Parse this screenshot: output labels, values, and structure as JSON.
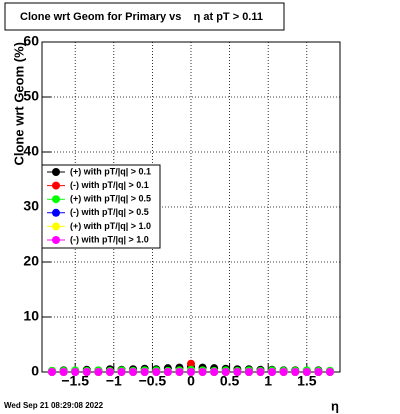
{
  "chart_data": {
    "type": "scatter",
    "title": "Clone wrt Geom for Primary vs    η at pT > 0.11",
    "y_label": "Clone wrt Geom (%)",
    "x_label": "η",
    "timestamp": "Wed Sep 21 08:29:08 2022",
    "x": [
      -1.8,
      -1.65,
      -1.5,
      -1.35,
      -1.2,
      -1.05,
      -0.9,
      -0.75,
      -0.6,
      -0.45,
      -0.3,
      -0.15,
      0,
      0.15,
      0.3,
      0.45,
      0.6,
      0.75,
      0.9,
      1.05,
      1.2,
      1.35,
      1.5,
      1.65,
      1.8
    ],
    "series": [
      {
        "name": "(+) with pT/|q| > 0.1",
        "color": "#000000",
        "values": [
          0.2,
          0.3,
          0.2,
          0.4,
          0.3,
          0.5,
          0.4,
          0.5,
          0.6,
          0.5,
          0.7,
          0.8,
          1.0,
          0.8,
          0.7,
          0.6,
          0.5,
          0.5,
          0.4,
          0.4,
          0.3,
          0.3,
          0.2,
          0.3,
          0.2
        ]
      },
      {
        "name": "(-) with pT/|q| > 0.1",
        "color": "#ff0000",
        "values": [
          0,
          0,
          0,
          0,
          0,
          0,
          0,
          0,
          0,
          0,
          0,
          0.3,
          1.5,
          0.3,
          0,
          0,
          0,
          0,
          0,
          0,
          0,
          0,
          0,
          0,
          0
        ]
      },
      {
        "name": "(+) with pT/|q| > 0.5",
        "color": "#00ff00",
        "values": [
          0.2,
          0.2,
          0.3,
          0.2,
          0.3,
          0.2,
          0.3,
          0.2,
          0.3,
          0.3,
          0.2,
          0.3,
          0.4,
          0.3,
          0.2,
          0.3,
          0.2,
          0.3,
          0.2,
          0.3,
          0.2,
          0.2,
          0.3,
          0.2,
          0.2
        ]
      },
      {
        "name": "(-) with pT/|q| > 0.5",
        "color": "#0000ff",
        "values": [
          0,
          0,
          0,
          0,
          0,
          0,
          0,
          0,
          0,
          0,
          0,
          0,
          0,
          0,
          0,
          0,
          0,
          0,
          0,
          0,
          0,
          0,
          0,
          0,
          0
        ]
      },
      {
        "name": "(+) with pT/|q| > 1.0",
        "color": "#ffff00",
        "values": [
          0,
          0,
          0,
          0,
          0,
          0,
          0,
          0,
          0,
          0,
          0,
          0,
          0,
          0,
          0,
          0,
          0,
          0,
          0,
          0,
          0,
          0,
          0,
          0,
          0
        ]
      },
      {
        "name": "(-) with pT/|q| > 1.0",
        "color": "#ff00ff",
        "values": [
          0,
          0,
          0,
          0,
          0,
          0,
          0,
          0,
          0,
          0,
          0,
          0,
          0,
          0,
          0,
          0,
          0,
          0,
          0,
          0,
          0,
          0,
          0,
          0,
          0
        ]
      }
    ],
    "xlim": [
      -1.93,
      1.93
    ],
    "xticks": [
      {
        "value": -1.5,
        "label": "−1.5"
      },
      {
        "value": -1,
        "label": "−1"
      },
      {
        "value": -0.5,
        "label": "−0.5"
      },
      0,
      0.5,
      1,
      1.5
    ],
    "ylim": [
      0,
      60
    ],
    "yticks": [
      0,
      10,
      20,
      30,
      40,
      50,
      60
    ],
    "grid": true
  }
}
